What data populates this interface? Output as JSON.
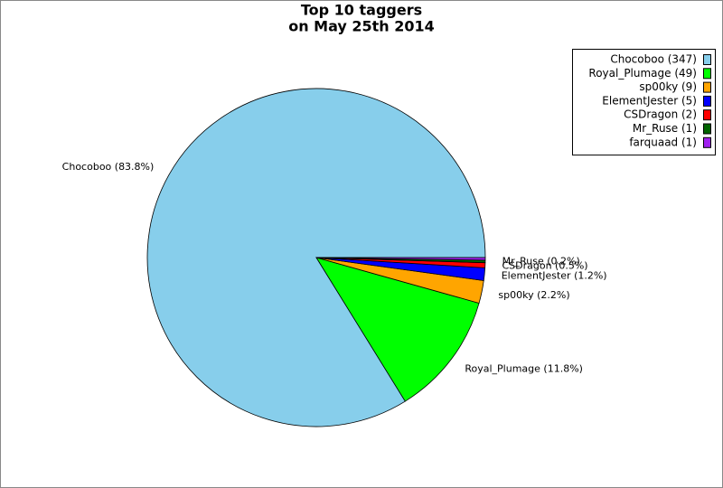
{
  "chart_data": {
    "type": "pie",
    "title": [
      "Top 10 taggers",
      "on May 25th 2014"
    ],
    "categories": [
      "Chocoboo (347)",
      "Royal_Plumage (49)",
      "sp00ky (9)",
      "ElementJester (5)",
      "CSDragon (2)",
      "Mr_Ruse (1)",
      "farquaad (1)"
    ],
    "values": [
      347,
      49,
      9,
      5,
      2,
      1,
      1
    ],
    "value_labels": [
      "Chocoboo (83.8%)",
      "Royal_Plumage (11.8%)",
      "sp00ky (2.2%)",
      "ElementJester (1.2%)",
      "CSDragon (0.5%)",
      "Mr_Ruse (0.2%)",
      null
    ],
    "colors": [
      "#87ceeb",
      "#00ff00",
      "#ffa500",
      "#0000ff",
      "#ff0000",
      "#006400",
      "#a020f0"
    ],
    "legend": "upper right"
  }
}
